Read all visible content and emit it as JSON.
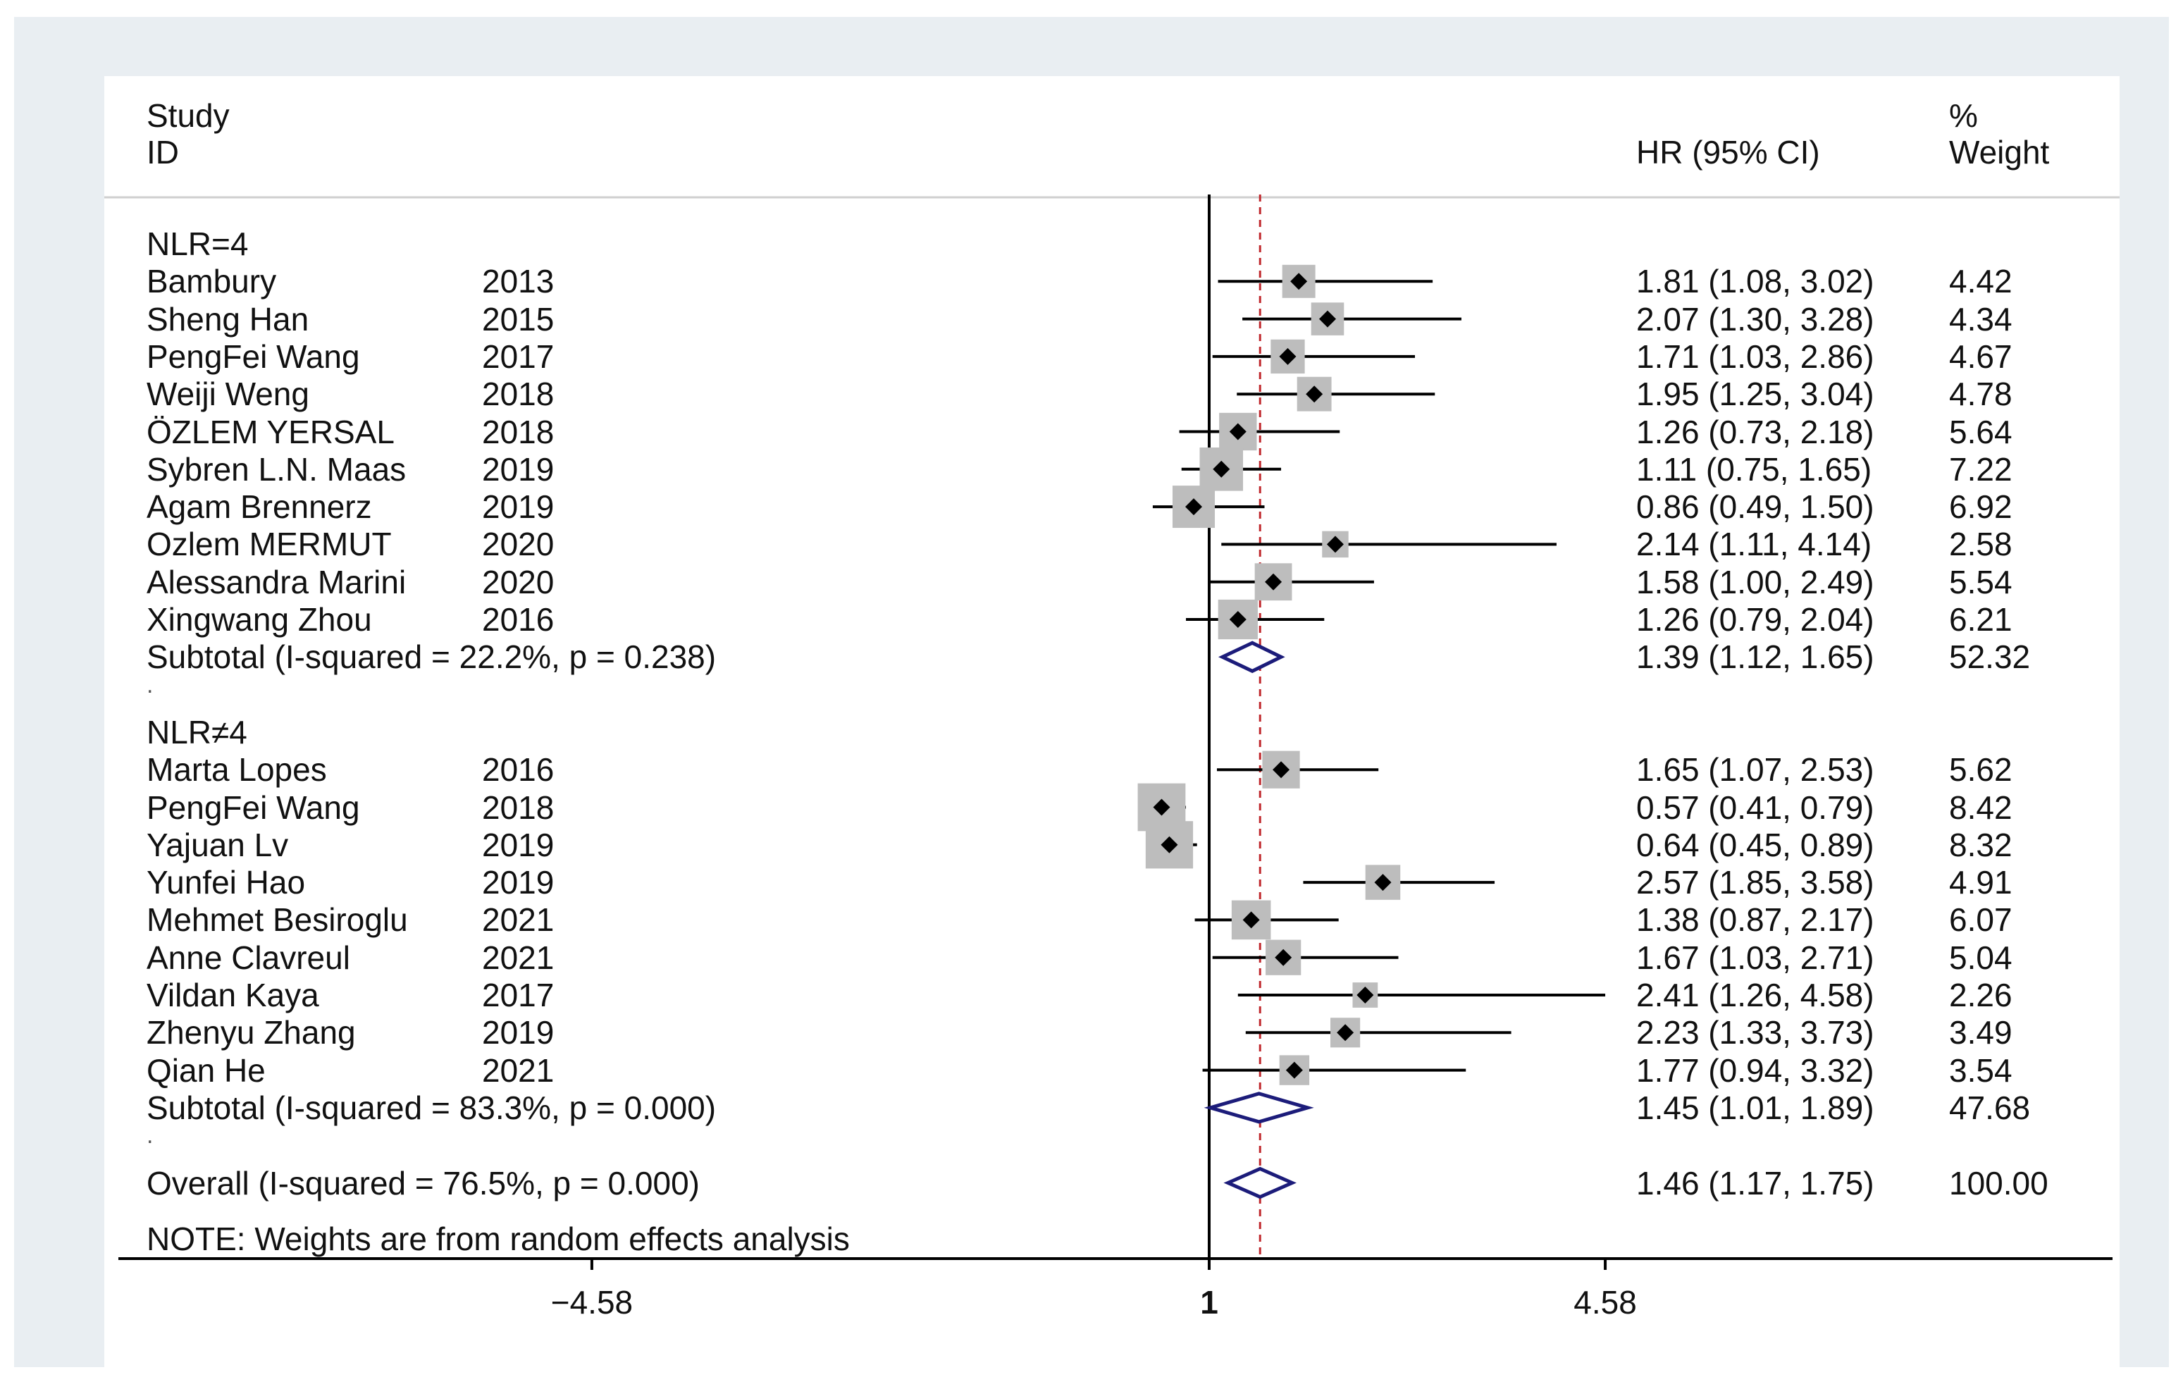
{
  "chart_data": {
    "type": "forest",
    "measure": "HR (95% CI)",
    "null_value": 1,
    "overall_reference_line": 1.46,
    "x_axis": {
      "ticks": [
        -4.58,
        1,
        4.58
      ],
      "tick_labels": [
        "-4.58",
        "1",
        "4.58"
      ]
    },
    "header": {
      "study_line1": "Study",
      "study_line2": "ID",
      "hr_label": "HR (95% CI)",
      "weight_line1": "%",
      "weight_line2": "Weight"
    },
    "rows": [
      {
        "kind": "group",
        "label": "NLR=4"
      },
      {
        "kind": "study",
        "name": "Bambury",
        "year": "2013",
        "hr": 1.81,
        "lo": 1.08,
        "hi": 3.02,
        "ci_text": "1.81 (1.08, 3.02)",
        "weight": "4.42"
      },
      {
        "kind": "study",
        "name": "Sheng Han",
        "year": "2015",
        "hr": 2.07,
        "lo": 1.3,
        "hi": 3.28,
        "ci_text": "2.07 (1.30, 3.28)",
        "weight": "4.34"
      },
      {
        "kind": "study",
        "name": "PengFei Wang",
        "year": "2017",
        "hr": 1.71,
        "lo": 1.03,
        "hi": 2.86,
        "ci_text": "1.71 (1.03, 2.86)",
        "weight": "4.67"
      },
      {
        "kind": "study",
        "name": "Weiji Weng",
        "year": "2018",
        "hr": 1.95,
        "lo": 1.25,
        "hi": 3.04,
        "ci_text": "1.95 (1.25, 3.04)",
        "weight": "4.78"
      },
      {
        "kind": "study",
        "name": "ÖZLEM YERSAL",
        "year": "2018",
        "hr": 1.26,
        "lo": 0.73,
        "hi": 2.18,
        "ci_text": "1.26 (0.73, 2.18)",
        "weight": "5.64"
      },
      {
        "kind": "study",
        "name": "Sybren L.N. Maas",
        "year": "2019",
        "hr": 1.11,
        "lo": 0.75,
        "hi": 1.65,
        "ci_text": "1.11 (0.75, 1.65)",
        "weight": "7.22"
      },
      {
        "kind": "study",
        "name": "Agam Brennerz",
        "year": "2019",
        "hr": 0.86,
        "lo": 0.49,
        "hi": 1.5,
        "ci_text": "0.86 (0.49, 1.50)",
        "weight": "6.92"
      },
      {
        "kind": "study",
        "name": "Ozlem MERMUT",
        "year": "2020",
        "hr": 2.14,
        "lo": 1.11,
        "hi": 4.14,
        "ci_text": "2.14 (1.11, 4.14)",
        "weight": "2.58"
      },
      {
        "kind": "study",
        "name": "Alessandra Marini",
        "year": "2020",
        "hr": 1.58,
        "lo": 1.0,
        "hi": 2.49,
        "ci_text": "1.58 (1.00, 2.49)",
        "weight": "5.54"
      },
      {
        "kind": "study",
        "name": "Xingwang Zhou",
        "year": "2016",
        "hr": 1.26,
        "lo": 0.79,
        "hi": 2.04,
        "ci_text": "1.26 (0.79, 2.04)",
        "weight": "6.21"
      },
      {
        "kind": "subtotal",
        "label": "Subtotal  (I-squared = 22.2%, p = 0.238)",
        "hr": 1.39,
        "lo": 1.12,
        "hi": 1.65,
        "ci_text": "1.39 (1.12, 1.65)",
        "weight": "52.32"
      },
      {
        "kind": "spacer",
        "label": "."
      },
      {
        "kind": "group",
        "label": "NLR≠4"
      },
      {
        "kind": "study",
        "name": "Marta Lopes",
        "year": "2016",
        "hr": 1.65,
        "lo": 1.07,
        "hi": 2.53,
        "ci_text": "1.65 (1.07, 2.53)",
        "weight": "5.62"
      },
      {
        "kind": "study",
        "name": "PengFei Wang",
        "year": "2018",
        "hr": 0.57,
        "lo": 0.41,
        "hi": 0.79,
        "ci_text": "0.57 (0.41, 0.79)",
        "weight": "8.42"
      },
      {
        "kind": "study",
        "name": "Yajuan Lv",
        "year": "2019",
        "hr": 0.64,
        "lo": 0.45,
        "hi": 0.89,
        "ci_text": "0.64 (0.45, 0.89)",
        "weight": "8.32"
      },
      {
        "kind": "study",
        "name": "Yunfei Hao",
        "year": "2019",
        "hr": 2.57,
        "lo": 1.85,
        "hi": 3.58,
        "ci_text": "2.57 (1.85, 3.58)",
        "weight": "4.91"
      },
      {
        "kind": "study",
        "name": "Mehmet Besiroglu",
        "year": "2021",
        "hr": 1.38,
        "lo": 0.87,
        "hi": 2.17,
        "ci_text": "1.38 (0.87, 2.17)",
        "weight": "6.07"
      },
      {
        "kind": "study",
        "name": "Anne Clavreul",
        "year": "2021",
        "hr": 1.67,
        "lo": 1.03,
        "hi": 2.71,
        "ci_text": "1.67 (1.03, 2.71)",
        "weight": "5.04"
      },
      {
        "kind": "study",
        "name": "Vildan Kaya",
        "year": "2017",
        "hr": 2.41,
        "lo": 1.26,
        "hi": 4.58,
        "ci_text": "2.41 (1.26, 4.58)",
        "weight": "2.26"
      },
      {
        "kind": "study",
        "name": "Zhenyu Zhang",
        "year": "2019",
        "hr": 2.23,
        "lo": 1.33,
        "hi": 3.73,
        "ci_text": "2.23 (1.33, 3.73)",
        "weight": "3.49"
      },
      {
        "kind": "study",
        "name": "Qian He",
        "year": "2021",
        "hr": 1.77,
        "lo": 0.94,
        "hi": 3.32,
        "ci_text": "1.77 (0.94, 3.32)",
        "weight": "3.54"
      },
      {
        "kind": "subtotal",
        "label": "Subtotal  (I-squared = 83.3%, p = 0.000)",
        "hr": 1.45,
        "lo": 1.01,
        "hi": 1.89,
        "ci_text": "1.45 (1.01, 1.89)",
        "weight": "47.68"
      },
      {
        "kind": "spacer",
        "label": "."
      },
      {
        "kind": "overall",
        "label": "Overall  (I-squared = 76.5%, p = 0.000)",
        "hr": 1.46,
        "lo": 1.17,
        "hi": 1.75,
        "ci_text": "1.46 (1.17, 1.75)",
        "weight": "100.00"
      }
    ],
    "note": "NOTE: Weights are from random effects analysis",
    "colors": {
      "text": "#111111",
      "null_line": "#000000",
      "ref_line": "#c0282d",
      "box": "#bdbdbd",
      "diamond": "#1c1c7a",
      "frame": "#e9eef2"
    }
  }
}
